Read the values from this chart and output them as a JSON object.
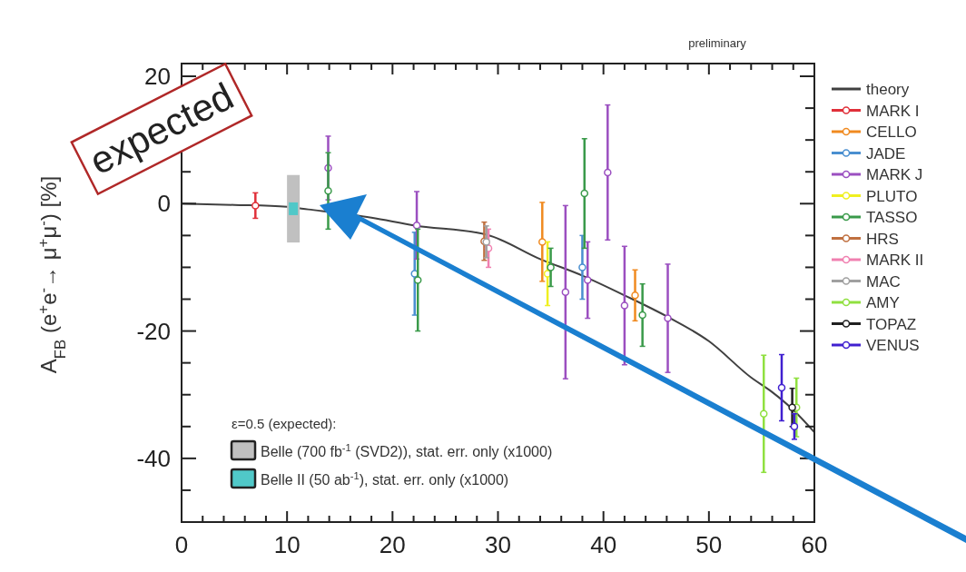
{
  "chart_data": {
    "type": "scatter",
    "ylabel": "A$_{FB}$ (e$^{+}$e$^{-}$→ μ$^{+}$μ$^{-}$) [%]",
    "annotations": [
      "preliminary",
      "expected",
      "ε=0.5 (expected):"
    ],
    "xlim": [
      0,
      60
    ],
    "ylim": [
      -50,
      22
    ],
    "xticks": [
      0,
      {
        "value": 2,
        "label": null
      },
      {
        "value": 4,
        "label": null
      },
      {
        "value": 6,
        "label": null
      },
      {
        "value": 8,
        "label": null
      },
      10,
      {
        "value": 12,
        "label": null
      },
      {
        "value": 14,
        "label": null
      },
      {
        "value": 16,
        "label": null
      },
      {
        "value": 18,
        "label": null
      },
      20,
      {
        "value": 22,
        "label": null
      },
      {
        "value": 24,
        "label": null
      },
      {
        "value": 26,
        "label": null
      },
      {
        "value": 28,
        "label": null
      },
      30,
      {
        "value": 32,
        "label": null
      },
      {
        "value": 34,
        "label": null
      },
      {
        "value": 36,
        "label": null
      },
      {
        "value": 38,
        "label": null
      },
      40,
      {
        "value": 42,
        "label": null
      },
      {
        "value": 44,
        "label": null
      },
      {
        "value": 46,
        "label": null
      },
      {
        "value": 48,
        "label": null
      },
      50,
      {
        "value": 52,
        "label": null
      },
      {
        "value": 54,
        "label": null
      },
      {
        "value": 56,
        "label": null
      },
      {
        "value": 58,
        "label": null
      },
      60
    ],
    "yticks": [
      {
        "value": -45,
        "label": null
      },
      -40,
      {
        "value": -35,
        "label": null
      },
      {
        "value": -30,
        "label": null
      },
      {
        "value": -25,
        "label": null
      },
      -20,
      {
        "value": -15,
        "label": null
      },
      {
        "value": -10,
        "label": null
      },
      {
        "value": -5,
        "label": null
      },
      0,
      {
        "value": 5,
        "label": null
      },
      {
        "value": 10,
        "label": null
      },
      {
        "value": 15,
        "label": null
      },
      20
    ],
    "grid": false,
    "legend": "right",
    "marker": "circle",
    "series": [
      {
        "name": "theory",
        "type": "line",
        "color": "#404040",
        "marker": "none",
        "x": [
          0,
          5,
          10,
          12,
          18,
          22,
          29,
          34,
          38,
          42,
          46,
          50,
          54,
          56,
          58,
          60
        ],
        "values": [
          0,
          -0.2,
          -0.5,
          -0.9,
          -2.2,
          -3.4,
          -4.9,
          -8.7,
          -11.3,
          -14.4,
          -17.7,
          -21.6,
          -27.3,
          -29.6,
          -32.4,
          -35.9
        ]
      },
      {
        "name": "MARK I",
        "color": "#e0303a",
        "x": [
          7
        ],
        "values": [
          -0.3
        ],
        "errors": [
          2
        ]
      },
      {
        "name": "CELLO",
        "color": "#f08a20",
        "x": [
          34.2,
          43
        ],
        "values": [
          -6,
          -14.4
        ],
        "errors": [
          6.2,
          4
        ]
      },
      {
        "name": "JADE",
        "color": "#4a8fd0",
        "x": [
          22.1,
          38
        ],
        "values": [
          -11,
          -10
        ],
        "errors": [
          6.5,
          5
        ]
      },
      {
        "name": "MARK J",
        "color": "#9b4fc0",
        "x": [
          13.9,
          22.3,
          36.4,
          38.5,
          40.4,
          42,
          46.1
        ],
        "values": [
          5.6,
          -3.4,
          -13.9,
          -12,
          4.9,
          -16,
          -18
        ],
        "errors": [
          5,
          5.3,
          13.6,
          6,
          10.6,
          9.3,
          8.5
        ]
      },
      {
        "name": "PLUTO",
        "color": "#f0f020",
        "x": [
          34.7
        ],
        "values": [
          -11
        ],
        "errors": [
          5
        ]
      },
      {
        "name": "TASSO",
        "color": "#3a9a4a",
        "x": [
          13.9,
          22.4,
          35,
          38.2,
          43.7
        ],
        "values": [
          2,
          -12,
          -10,
          1.6,
          -17.5
        ],
        "errors": [
          6,
          8,
          3,
          8.6,
          4.9
        ]
      },
      {
        "name": "HRS",
        "color": "#c07040",
        "x": [
          28.7
        ],
        "values": [
          -5.9
        ],
        "errors": [
          3
        ]
      },
      {
        "name": "MARK II",
        "color": "#f080b0",
        "x": [
          29.1
        ],
        "values": [
          -7
        ],
        "errors": [
          3
        ]
      },
      {
        "name": "MAC",
        "color": "#a0a0a0",
        "x": [
          28.9
        ],
        "values": [
          -6
        ],
        "errors": [
          2.5
        ]
      },
      {
        "name": "AMY",
        "color": "#90e040",
        "x": [
          55.2,
          58.3
        ],
        "values": [
          -33,
          -32
        ],
        "errors": [
          9.2,
          4.6
        ]
      },
      {
        "name": "TOPAZ",
        "color": "#202020",
        "x": [
          57.9
        ],
        "values": [
          -32
        ],
        "errors": [
          3
        ]
      },
      {
        "name": "VENUS",
        "color": "#4020d0",
        "x": [
          56.9,
          58.1
        ],
        "values": [
          -28.9,
          -35
        ],
        "errors": [
          5.2,
          2
        ]
      },
      {
        "name": "Belle (700 fb$^{-1}$ (SVD2)), stat. err. only (x1000)",
        "type": "bar",
        "color": "#c0c0c0",
        "x": [
          10.6
        ],
        "base": [
          -6.1
        ],
        "values": [
          10.6
        ]
      },
      {
        "name": "Belle II (50 ab$^{-1}$), stat. err. only (x1000)",
        "type": "bar",
        "color": "#50c8c8",
        "x": [
          10.6
        ],
        "base": [
          -1.8
        ],
        "values": [
          2
        ]
      }
    ]
  }
}
